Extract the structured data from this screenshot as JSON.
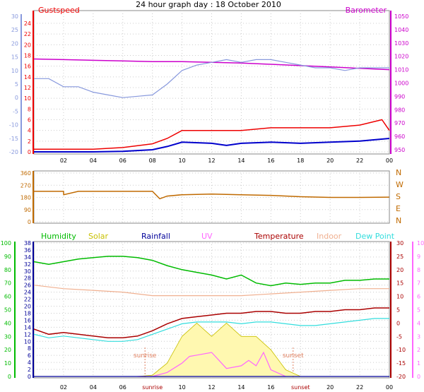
{
  "title": "24 hour graph day : 18 October 2010",
  "colors": {
    "gust": "#ee0000",
    "wind": "#0000cc",
    "barometer": "#cc00cc",
    "speed_axis": "#8899dd",
    "direction": "#c06a00",
    "humidity": "#00bb00",
    "solar": "#c8c000",
    "solar_fill": "#fff8b0",
    "rainfall": "#000099",
    "uv": "#ff66ff",
    "temperature": "#aa0000",
    "indoor": "#f0b090",
    "dewpoint": "#33dddd",
    "grid": "#cccccc",
    "sun_marker": "#e08060"
  },
  "chart_data": [
    {
      "type": "line",
      "name": "wind",
      "legend_left": "Gustspeed",
      "legend_right": "Barometer",
      "x_ticks": [
        "02",
        "04",
        "06",
        "08",
        "10",
        "12",
        "14",
        "16",
        "18",
        "20",
        "22",
        "00"
      ],
      "y_left_ticks": [
        0,
        2,
        4,
        6,
        8,
        10,
        12,
        14,
        16,
        18,
        20,
        22,
        24
      ],
      "y_left_range": [
        0,
        24
      ],
      "y_speed_ticks": [
        -20,
        -15,
        -10,
        -5,
        0,
        5,
        10,
        15,
        20,
        25,
        30
      ],
      "y_right_ticks": [
        950,
        960,
        970,
        980,
        990,
        1000,
        1010,
        1020,
        1030,
        1040,
        1050
      ],
      "y_right_range": [
        950,
        1050
      ],
      "series": [
        {
          "name": "Gustspeed",
          "axis": "left",
          "x": [
            0,
            2,
            4,
            6,
            8,
            9,
            10,
            12,
            14,
            16,
            18,
            20,
            22,
            23.5,
            24
          ],
          "y": [
            0.5,
            0.5,
            0.5,
            0.8,
            1.5,
            2.5,
            4,
            4,
            4,
            4.5,
            4.5,
            4.5,
            5,
            6,
            4
          ]
        },
        {
          "name": "Wind",
          "axis": "left",
          "x": [
            0,
            2,
            4,
            6,
            8,
            9,
            10,
            12,
            13,
            14,
            16,
            18,
            20,
            22,
            24
          ],
          "y": [
            0,
            0,
            0,
            0.1,
            0.4,
            1,
            1.8,
            1.6,
            1.2,
            1.6,
            1.8,
            1.6,
            1.8,
            2,
            2.5
          ]
        },
        {
          "name": "Barometer",
          "axis": "right",
          "x": [
            0,
            2,
            4,
            6,
            8,
            10,
            12,
            14,
            16,
            18,
            20,
            22,
            24
          ],
          "y": [
            1018,
            1017.5,
            1017,
            1016.5,
            1016,
            1016,
            1015.5,
            1015,
            1014,
            1013,
            1012,
            1011,
            1010
          ]
        },
        {
          "name": "Speed",
          "axis": "speed",
          "x": [
            0,
            1,
            2,
            3,
            4,
            5,
            6,
            7,
            8,
            9,
            10,
            11,
            12,
            13,
            14,
            15,
            16,
            17,
            18,
            19,
            20,
            21,
            22,
            23,
            24
          ],
          "y": [
            7,
            7,
            4,
            4,
            2,
            1,
            0,
            0.5,
            1,
            5,
            10,
            12,
            13,
            14,
            13,
            14,
            14,
            13,
            12,
            11,
            11,
            10,
            11,
            11,
            11
          ]
        }
      ]
    },
    {
      "type": "line",
      "name": "wind-direction",
      "y_ticks": [
        0,
        90,
        180,
        270,
        360
      ],
      "y_range": [
        0,
        360
      ],
      "compass_labels": [
        "N",
        "W",
        "S",
        "E",
        "N"
      ],
      "series": [
        {
          "name": "Direction",
          "x": [
            0,
            2,
            2.01,
            3,
            8,
            8.5,
            9,
            10,
            12,
            14,
            16,
            18,
            20,
            22,
            24
          ],
          "y": [
            225,
            225,
            200,
            225,
            225,
            170,
            190,
            200,
            205,
            200,
            195,
            185,
            180,
            180,
            182
          ]
        }
      ]
    },
    {
      "type": "line",
      "name": "environment",
      "legend": [
        "Humidity",
        "Solar",
        "Rainfall",
        "UV",
        "Temperature",
        "Indoor",
        "Dew Point"
      ],
      "x_ticks": [
        "02",
        "04",
        "06",
        "sunrise",
        "10",
        "12",
        "14",
        "16",
        "sunset",
        "20",
        "22",
        "00"
      ],
      "markers": [
        {
          "label": "sunrise",
          "x": 7.5
        },
        {
          "label": "sunset",
          "x": 17.5
        }
      ],
      "y_humidity_ticks": [
        0,
        10,
        20,
        30,
        40,
        50,
        60,
        70,
        80,
        90,
        100
      ],
      "y_humidity_range": [
        0,
        100
      ],
      "y_temp_ticks": [
        0,
        2,
        4,
        6,
        8,
        10,
        12,
        14,
        16,
        18,
        20,
        22,
        24,
        26,
        28,
        30,
        32,
        34,
        36,
        38
      ],
      "y_temp_range": [
        0,
        38
      ],
      "y_temp_right_ticks": [
        -20,
        -15,
        -10,
        -5,
        0,
        5,
        10,
        15,
        20,
        25,
        30
      ],
      "y_uv_ticks": [
        0,
        1,
        2,
        3,
        4,
        5,
        6,
        7,
        8,
        9,
        10
      ],
      "y_uv_range": [
        0,
        10
      ],
      "series": [
        {
          "name": "Humidity",
          "axis": "humidity",
          "x": [
            0,
            1,
            2,
            3,
            4,
            5,
            6,
            7,
            8,
            9,
            10,
            11,
            12,
            13,
            14,
            15,
            16,
            17,
            18,
            19,
            20,
            21,
            22,
            23,
            24
          ],
          "y": [
            86,
            84,
            86,
            88,
            89,
            90,
            90,
            89,
            87,
            83,
            80,
            78,
            76,
            73,
            76,
            70,
            68,
            70,
            69,
            70,
            70,
            72,
            72,
            73,
            73
          ]
        },
        {
          "name": "Indoor",
          "axis": "temp",
          "x": [
            0,
            2,
            4,
            6,
            8,
            10,
            12,
            14,
            16,
            18,
            20,
            22,
            24
          ],
          "y": [
            26,
            25,
            24.5,
            24,
            23,
            23,
            23,
            23,
            23.5,
            24,
            24.5,
            25,
            25
          ]
        },
        {
          "name": "Temperature",
          "axis": "temp",
          "x": [
            0,
            1,
            2,
            3,
            4,
            5,
            6,
            7,
            8,
            9,
            10,
            11,
            12,
            13,
            14,
            15,
            16,
            17,
            18,
            19,
            20,
            21,
            22,
            23,
            24
          ],
          "y": [
            13.5,
            12,
            12.5,
            12,
            11.5,
            11,
            11,
            11.5,
            13,
            15,
            16.5,
            17,
            17.5,
            18,
            18,
            18.5,
            18.5,
            18,
            18,
            18.5,
            18.5,
            19,
            19,
            19.5,
            19.5
          ]
        },
        {
          "name": "Dew Point",
          "axis": "temp",
          "x": [
            0,
            1,
            2,
            3,
            4,
            5,
            6,
            7,
            8,
            9,
            10,
            11,
            12,
            13,
            14,
            15,
            16,
            17,
            18,
            19,
            20,
            21,
            22,
            23,
            24
          ],
          "y": [
            12,
            11,
            11.5,
            11,
            10.5,
            10,
            10,
            10.5,
            12,
            13.5,
            15,
            15.5,
            15.5,
            15.5,
            15,
            15.5,
            15.5,
            15,
            14.5,
            14.5,
            15,
            15.5,
            16,
            16.5,
            16.5
          ]
        },
        {
          "name": "Solar",
          "axis": "uv",
          "x": [
            7,
            8,
            9,
            10,
            11,
            12,
            13,
            14,
            15,
            16,
            17,
            18
          ],
          "y": [
            0,
            0.1,
            1,
            3,
            4,
            3,
            4,
            3,
            3,
            2,
            0.5,
            0
          ]
        },
        {
          "name": "UV",
          "axis": "uv",
          "x": [
            7,
            8,
            9,
            10,
            10.5,
            11,
            12,
            12.5,
            13,
            14,
            14.5,
            15,
            15.5,
            16,
            17
          ],
          "y": [
            0,
            0,
            0.3,
            1,
            1.5,
            1.6,
            1.8,
            1.2,
            0.6,
            0.8,
            1.2,
            0.8,
            1.8,
            0.5,
            0
          ]
        },
        {
          "name": "Rainfall",
          "axis": "humidity",
          "x": [
            0,
            24
          ],
          "y": [
            0,
            0
          ]
        }
      ]
    }
  ]
}
